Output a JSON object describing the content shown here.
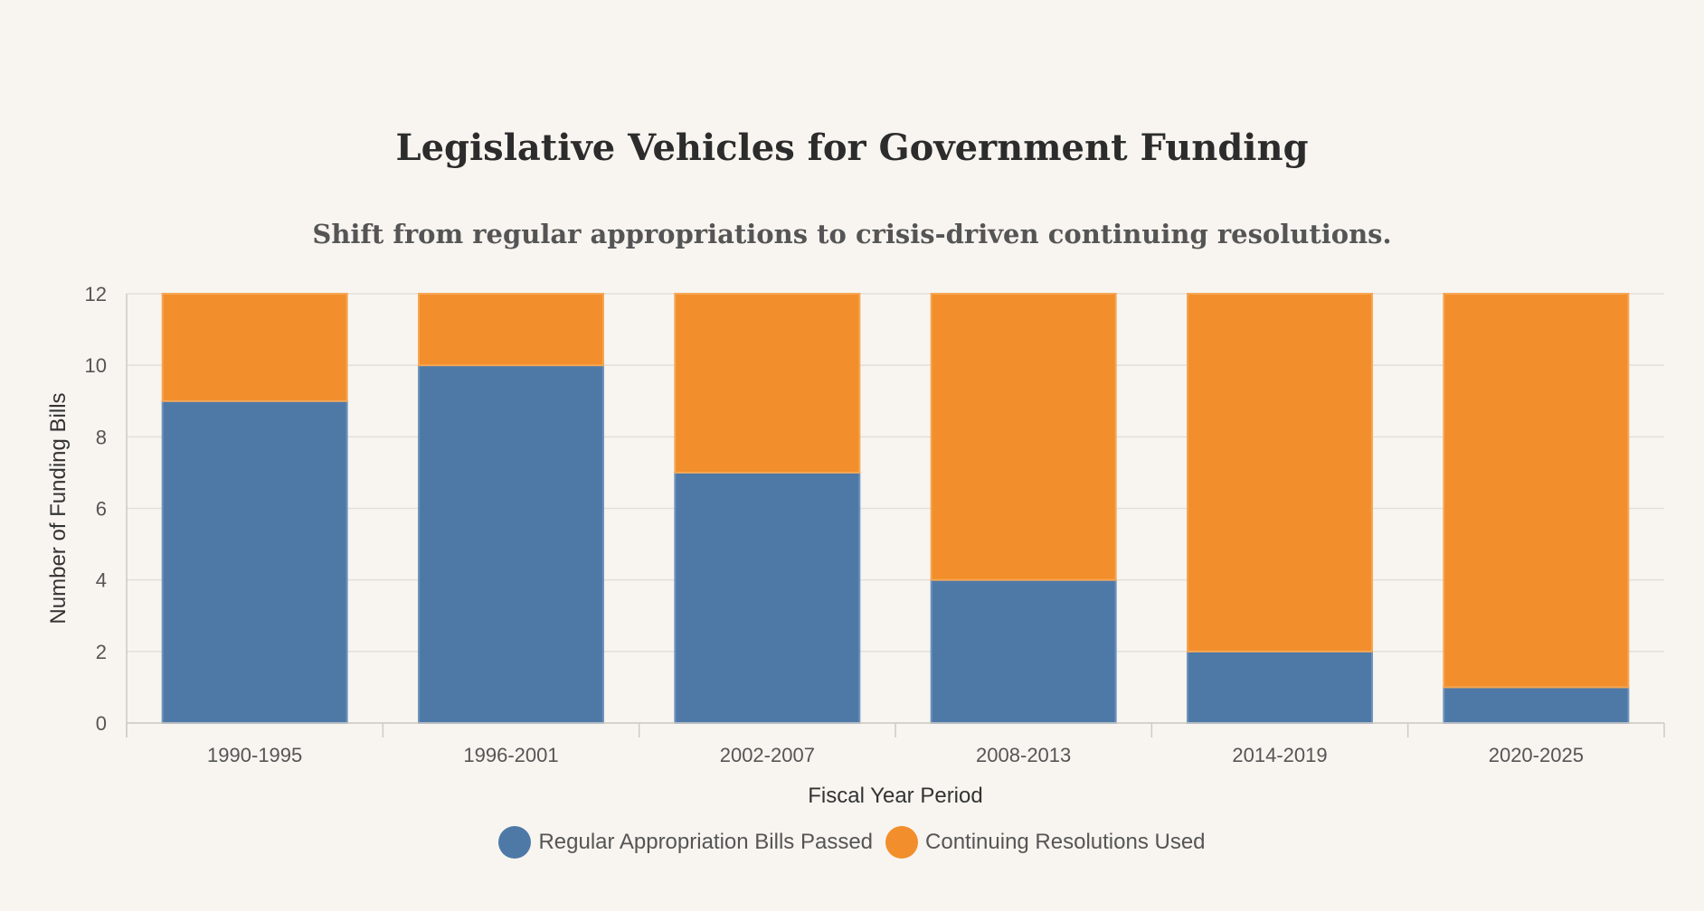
{
  "chart_data": {
    "type": "bar",
    "stacked": true,
    "title": "Legislative Vehicles for Government Funding",
    "subtitle": "Shift from regular appropriations to crisis-driven continuing resolutions.",
    "xlabel": "Fiscal Year Period",
    "ylabel": "Number of Funding Bills",
    "ylim": [
      0,
      12
    ],
    "yticks": [
      "0",
      "2",
      "4",
      "6",
      "8",
      "10",
      "12"
    ],
    "categories": [
      "1990-1995",
      "1996-2001",
      "2002-2007",
      "2008-2013",
      "2014-2019",
      "2020-2025"
    ],
    "series": [
      {
        "name": "Regular Appropriation Bills Passed",
        "color": "#4e79a7",
        "values": [
          9,
          10,
          7,
          4,
          2,
          1
        ]
      },
      {
        "name": "Continuing Resolutions Used",
        "color": "#f28e2b",
        "values": [
          3,
          2,
          5,
          8,
          10,
          11
        ]
      }
    ],
    "grid": true,
    "legend_position": "bottom-center"
  }
}
